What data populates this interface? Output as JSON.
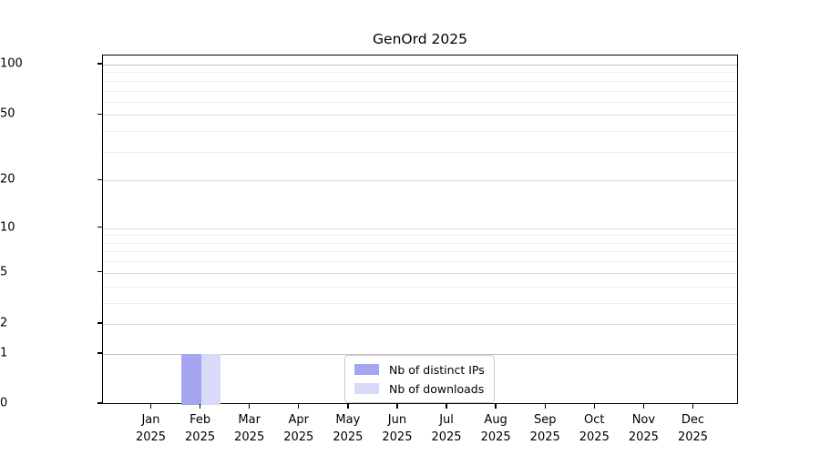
{
  "chart_data": {
    "type": "bar",
    "title": "GenOrd 2025",
    "categories": [
      "Jan",
      "Feb",
      "Mar",
      "Apr",
      "May",
      "Jun",
      "Jul",
      "Aug",
      "Sep",
      "Oct",
      "Nov",
      "Dec"
    ],
    "category_year": "2025",
    "series": [
      {
        "name": "Nb of distinct IPs",
        "color": "#a5a5f0",
        "values": [
          0,
          1,
          0,
          0,
          0,
          0,
          0,
          0,
          0,
          0,
          0,
          0
        ]
      },
      {
        "name": "Nb of downloads",
        "color": "#d9d9f8",
        "values": [
          0,
          1,
          0,
          0,
          0,
          0,
          0,
          0,
          0,
          0,
          0,
          0
        ]
      }
    ],
    "yscale": "log1p",
    "yticks": [
      0,
      1,
      2,
      5,
      10,
      20,
      50,
      100
    ],
    "minor_gridline_values": [
      3,
      4,
      6,
      7,
      8,
      9,
      30,
      40,
      60,
      70,
      80,
      90
    ],
    "ylim": [
      0,
      113
    ],
    "xlabel": "",
    "ylabel": "",
    "grid": true,
    "legend_position": "bottom-center"
  }
}
